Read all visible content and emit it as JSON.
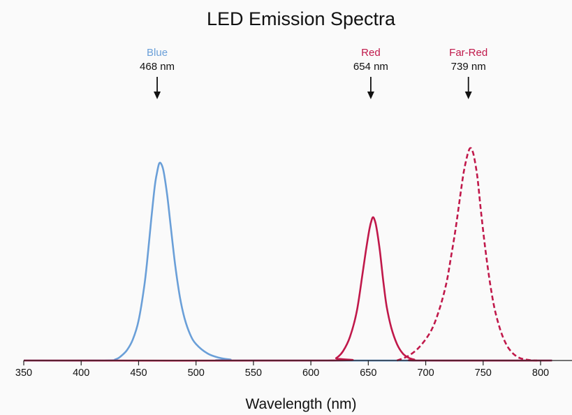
{
  "chart_data": {
    "type": "line",
    "title": "LED Emission Spectra",
    "xlabel": "Wavelength (nm)",
    "ylabel": "",
    "xlim": [
      350,
      810
    ],
    "ylim": [
      0,
      1
    ],
    "grid": false,
    "x_ticks": [
      350,
      400,
      450,
      500,
      550,
      600,
      650,
      700,
      750,
      800
    ],
    "series": [
      {
        "name": "Blue",
        "peak_label": "468 nm",
        "color": "#6a9fd8",
        "dash": false,
        "x": [
          350,
          420,
          430,
          435,
          440,
          445,
          450,
          455,
          458,
          461,
          464,
          466,
          468,
          470,
          472,
          475,
          478,
          482,
          486,
          490,
          495,
          500,
          510,
          520,
          530,
          540,
          810
        ],
        "y": [
          0,
          0,
          0.005,
          0.02,
          0.045,
          0.09,
          0.17,
          0.32,
          0.45,
          0.6,
          0.74,
          0.8,
          0.84,
          0.835,
          0.8,
          0.7,
          0.57,
          0.4,
          0.27,
          0.18,
          0.11,
          0.07,
          0.03,
          0.012,
          0.004,
          0,
          0
        ]
      },
      {
        "name": "Red",
        "peak_label": "654 nm",
        "color": "#c0184a",
        "dash": false,
        "x": [
          350,
          615,
          622,
          628,
          634,
          640,
          645,
          648,
          651,
          653,
          654,
          655,
          657,
          660,
          663,
          666,
          670,
          675,
          680,
          685,
          690,
          695,
          810
        ],
        "y": [
          0,
          0,
          0.01,
          0.04,
          0.1,
          0.21,
          0.37,
          0.47,
          0.56,
          0.6,
          0.61,
          0.605,
          0.57,
          0.47,
          0.34,
          0.23,
          0.14,
          0.07,
          0.03,
          0.012,
          0.004,
          0,
          0
        ]
      },
      {
        "name": "Far-Red",
        "peak_label": "739 nm",
        "color": "#c0184a",
        "dash": true,
        "x": [
          675,
          685,
          695,
          705,
          712,
          718,
          722,
          726,
          730,
          733,
          736,
          738,
          739,
          740,
          742,
          745,
          748,
          752,
          756,
          760,
          765,
          770,
          775,
          780,
          785,
          790,
          795,
          797
        ],
        "y": [
          0,
          0.02,
          0.06,
          0.13,
          0.22,
          0.33,
          0.44,
          0.56,
          0.7,
          0.8,
          0.87,
          0.9,
          0.905,
          0.9,
          0.87,
          0.78,
          0.64,
          0.47,
          0.33,
          0.22,
          0.13,
          0.07,
          0.035,
          0.015,
          0.006,
          0.002,
          0,
          0
        ]
      }
    ],
    "annotations": [
      {
        "name": "Blue",
        "wavelength": "468 nm",
        "x": 468,
        "color": "#6a9fd8"
      },
      {
        "name": "Red",
        "wavelength": "654 nm",
        "x": 654,
        "color": "#c0184a"
      },
      {
        "name": "Far-Red",
        "wavelength": "739 nm",
        "x": 739,
        "color": "#c0184a"
      }
    ]
  }
}
